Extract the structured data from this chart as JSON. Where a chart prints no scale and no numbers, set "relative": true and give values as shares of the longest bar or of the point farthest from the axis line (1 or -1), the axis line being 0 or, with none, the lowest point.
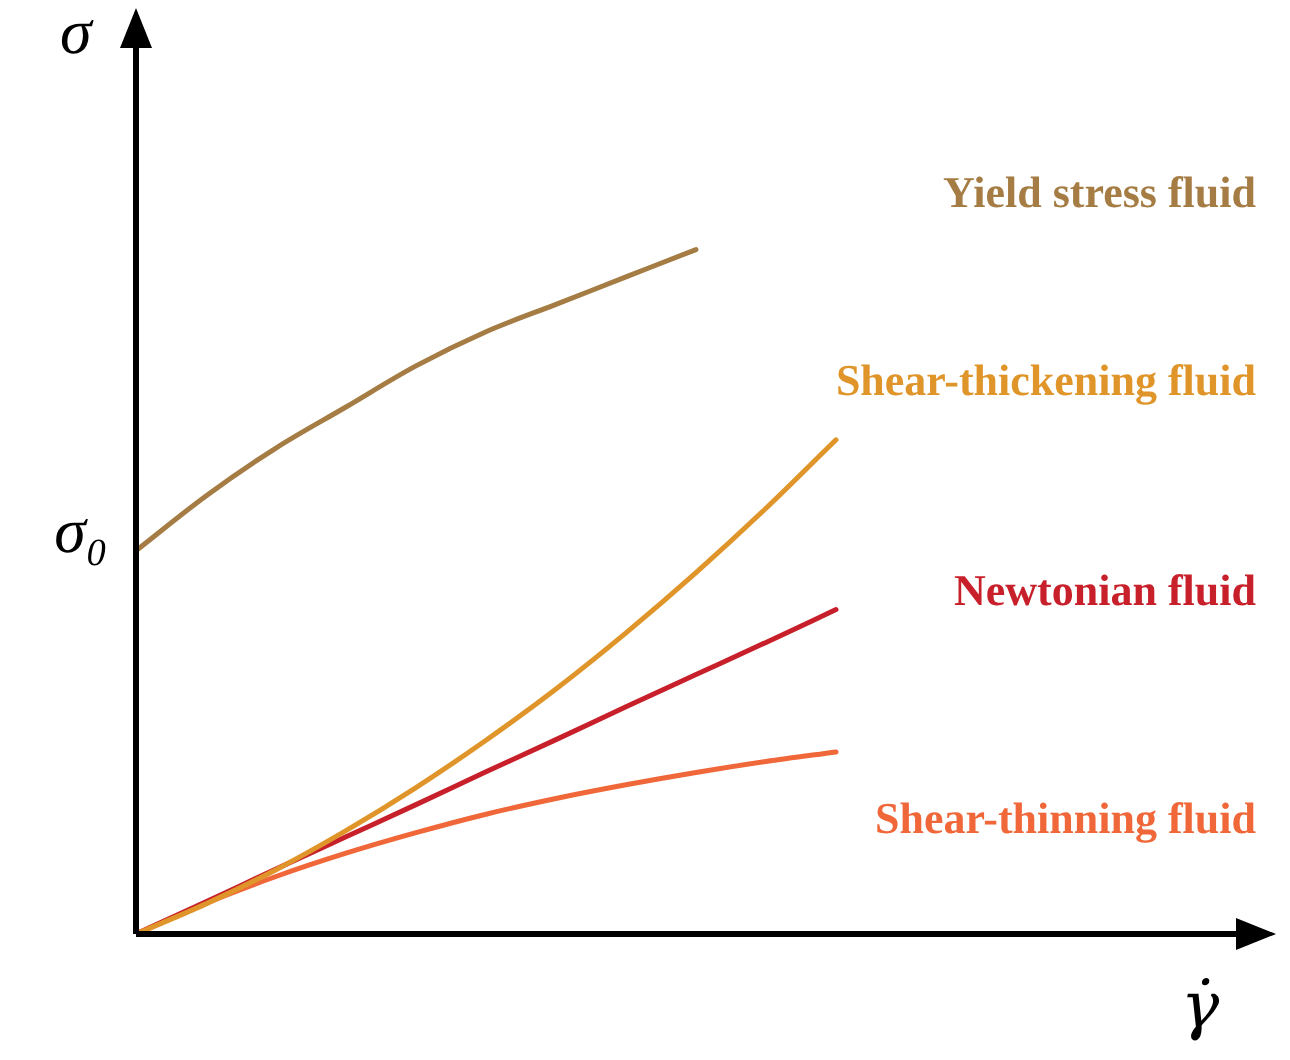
{
  "chart_data": {
    "type": "line",
    "relative": true,
    "xlabel": "γ̇",
    "ylabel": "σ",
    "legend": false,
    "marker": "none",
    "line_style": "solid",
    "categories": [
      null,
      null,
      null,
      null,
      null,
      null,
      null,
      null,
      null,
      null,
      null,
      null,
      null,
      null,
      null,
      null,
      null
    ],
    "annotations": [
      "σ₀"
    ],
    "series": [
      {
        "name": "Yield stress fluid",
        "color": "#a57c43",
        "values": [
          0.56,
          0.64,
          0.71,
          0.77,
          0.83,
          0.88,
          0.92,
          0.96,
          1,
          null,
          null,
          null,
          null,
          null,
          null,
          null,
          null
        ]
      },
      {
        "name": "Shear-thickening fluid",
        "color": "#e0952a",
        "values": [
          0,
          0.044,
          0.094,
          0.151,
          0.214,
          0.283,
          0.358,
          0.44,
          0.528,
          0.622,
          0.722,
          null,
          null,
          null,
          null,
          null,
          null
        ]
      },
      {
        "name": "Newtonian fluid",
        "color": "#c8202a",
        "values": [
          0,
          0.047,
          0.095,
          0.142,
          0.189,
          0.237,
          0.284,
          0.332,
          0.379,
          0.426,
          0.474,
          null,
          null,
          null,
          null,
          null,
          null
        ]
      },
      {
        "name": "Shear-thinning fluid",
        "color": "#f0683a",
        "values": [
          0,
          0.045,
          0.084,
          0.118,
          0.148,
          0.175,
          0.198,
          0.218,
          0.236,
          0.252,
          0.266,
          null,
          null,
          null,
          null,
          null,
          null
        ]
      }
    ]
  }
}
